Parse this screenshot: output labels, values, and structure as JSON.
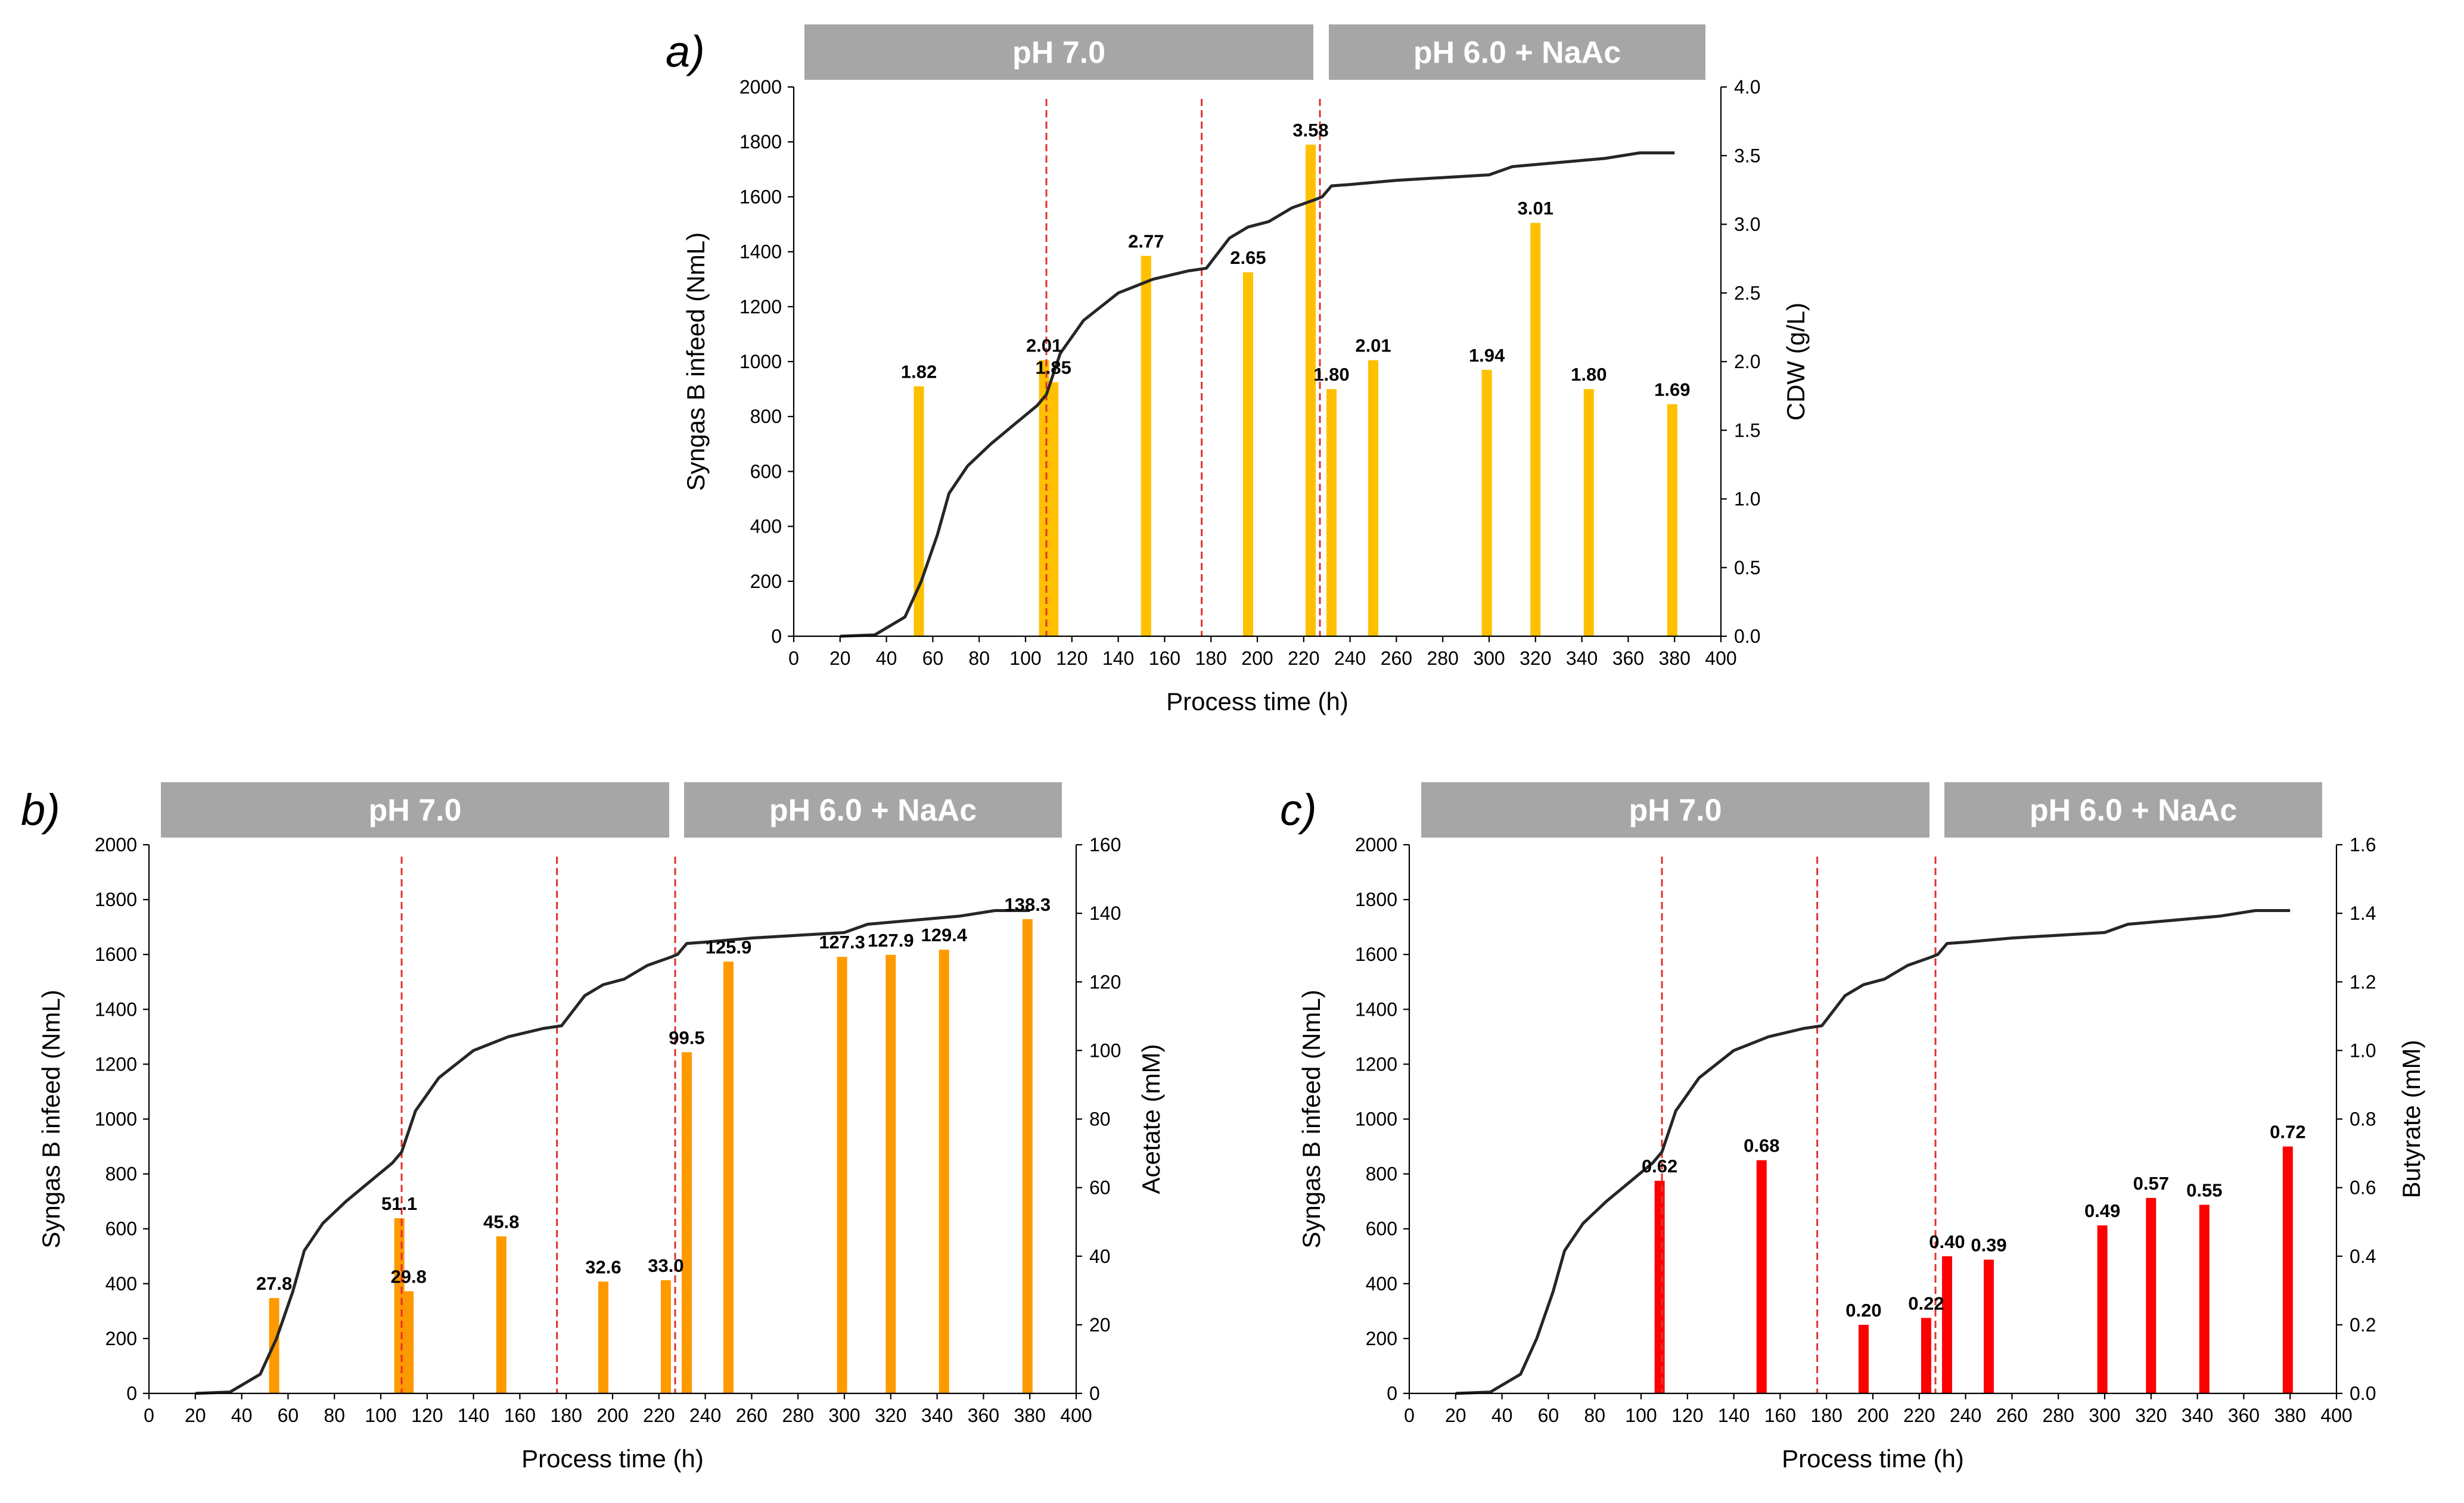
{
  "chart_data": [
    {
      "panel": "a)",
      "type": "bar",
      "phases": [
        {
          "label": "pH 7.0"
        },
        {
          "label": "pH 6.0 + NaAc"
        }
      ],
      "xlabel": "Process time (h)",
      "ylabel_left": "Syngas B infeed (NmL)",
      "ylabel_right": "CDW (g/L)",
      "xlim": [
        0,
        400
      ],
      "x_ticks": [
        "0",
        "20",
        "40",
        "60",
        "80",
        "100",
        "120",
        "140",
        "160",
        "180",
        "200",
        "220",
        "240",
        "260",
        "280",
        "300",
        "320",
        "340",
        "360",
        "380",
        "400"
      ],
      "ylim_left": [
        0,
        2000
      ],
      "y_left_ticks": [
        "0",
        "200",
        "400",
        "600",
        "800",
        "1000",
        "1200",
        "1400",
        "1600",
        "1800",
        "2000"
      ],
      "ylim_right": [
        0,
        4
      ],
      "y_right_ticks": [
        "0.0",
        "0.5",
        "1.0",
        "1.5",
        "2.0",
        "2.5",
        "3.0",
        "3.5",
        "4.0"
      ],
      "vlines": [
        109,
        176,
        227
      ],
      "bar_color": "#FFC000",
      "bars": [
        {
          "x": 54,
          "value": 1.82,
          "label": "1.82"
        },
        {
          "x": 108,
          "value": 2.01,
          "label": "2.01"
        },
        {
          "x": 112,
          "value": 1.85,
          "label": "1.85"
        },
        {
          "x": 152,
          "value": 2.77,
          "label": "2.77"
        },
        {
          "x": 196,
          "value": 2.65,
          "label": "2.65"
        },
        {
          "x": 223,
          "value": 3.58,
          "label": "3.58"
        },
        {
          "x": 232,
          "value": 1.8,
          "label": "1.80"
        },
        {
          "x": 250,
          "value": 2.01,
          "label": "2.01"
        },
        {
          "x": 299,
          "value": 1.94,
          "label": "1.94"
        },
        {
          "x": 320,
          "value": 3.01,
          "label": "3.01"
        },
        {
          "x": 343,
          "value": 1.8,
          "label": "1.80"
        },
        {
          "x": 379,
          "value": 1.69,
          "label": "1.69"
        }
      ],
      "line": {
        "name": "Syngas B infeed",
        "x": [
          20,
          35,
          48,
          55,
          62,
          67,
          75,
          85,
          95,
          105,
          109,
          115,
          125,
          140,
          155,
          170,
          178,
          188,
          196,
          205,
          215,
          225,
          228,
          232,
          240,
          260,
          280,
          300,
          310,
          330,
          350,
          365,
          380
        ],
        "y": [
          0,
          5,
          70,
          200,
          370,
          520,
          620,
          700,
          770,
          840,
          880,
          1030,
          1150,
          1250,
          1300,
          1330,
          1340,
          1450,
          1490,
          1510,
          1560,
          1590,
          1600,
          1640,
          1645,
          1660,
          1670,
          1680,
          1710,
          1725,
          1740,
          1760,
          1760
        ]
      }
    },
    {
      "panel": "b)",
      "type": "bar",
      "phases": [
        {
          "label": "pH 7.0"
        },
        {
          "label": "pH 6.0 + NaAc"
        }
      ],
      "xlabel": "Process time (h)",
      "ylabel_left": "Syngas B infeed (NmL)",
      "ylabel_right": "Acetate (mM)",
      "xlim": [
        0,
        400
      ],
      "x_ticks": [
        "0",
        "20",
        "40",
        "60",
        "80",
        "100",
        "120",
        "140",
        "160",
        "180",
        "200",
        "220",
        "240",
        "260",
        "280",
        "300",
        "320",
        "340",
        "360",
        "380",
        "400"
      ],
      "ylim_left": [
        0,
        2000
      ],
      "y_left_ticks": [
        "0",
        "200",
        "400",
        "600",
        "800",
        "1000",
        "1200",
        "1400",
        "1600",
        "1800",
        "2000"
      ],
      "ylim_right": [
        0,
        160
      ],
      "y_right_ticks": [
        "0",
        "20",
        "40",
        "60",
        "80",
        "100",
        "120",
        "140",
        "160"
      ],
      "vlines": [
        109,
        176,
        227
      ],
      "bar_color": "#FF9900",
      "bars": [
        {
          "x": 54,
          "value": 27.8,
          "label": "27.8"
        },
        {
          "x": 108,
          "value": 51.1,
          "label": "51.1"
        },
        {
          "x": 112,
          "value": 29.8,
          "label": "29.8"
        },
        {
          "x": 152,
          "value": 45.8,
          "label": "45.8"
        },
        {
          "x": 196,
          "value": 32.6,
          "label": "32.6"
        },
        {
          "x": 223,
          "value": 33.0,
          "label": "33.0"
        },
        {
          "x": 232,
          "value": 99.5,
          "label": "99.5"
        },
        {
          "x": 250,
          "value": 125.9,
          "label": "125.9"
        },
        {
          "x": 299,
          "value": 127.3,
          "label": "127.3"
        },
        {
          "x": 320,
          "value": 127.9,
          "label": "127.9"
        },
        {
          "x": 343,
          "value": 129.4,
          "label": "129.4"
        },
        {
          "x": 379,
          "value": 138.3,
          "label": "138.3"
        }
      ],
      "line": {
        "name": "Syngas B infeed",
        "x": [
          20,
          35,
          48,
          55,
          62,
          67,
          75,
          85,
          95,
          105,
          109,
          115,
          125,
          140,
          155,
          170,
          178,
          188,
          196,
          205,
          215,
          225,
          228,
          232,
          240,
          260,
          280,
          300,
          310,
          330,
          350,
          365,
          380
        ],
        "y": [
          0,
          5,
          70,
          200,
          370,
          520,
          620,
          700,
          770,
          840,
          880,
          1030,
          1150,
          1250,
          1300,
          1330,
          1340,
          1450,
          1490,
          1510,
          1560,
          1590,
          1600,
          1640,
          1645,
          1660,
          1670,
          1680,
          1710,
          1725,
          1740,
          1760,
          1760
        ]
      }
    },
    {
      "panel": "c)",
      "type": "bar",
      "phases": [
        {
          "label": "pH 7.0"
        },
        {
          "label": "pH 6.0 + NaAc"
        }
      ],
      "xlabel": "Process time (h)",
      "ylabel_left": "Syngas B infeed (NmL)",
      "ylabel_right": "Butyrate (mM)",
      "xlim": [
        0,
        400
      ],
      "x_ticks": [
        "0",
        "20",
        "40",
        "60",
        "80",
        "100",
        "120",
        "140",
        "160",
        "180",
        "200",
        "220",
        "240",
        "260",
        "280",
        "300",
        "320",
        "340",
        "360",
        "380",
        "400"
      ],
      "ylim_left": [
        0,
        2000
      ],
      "y_left_ticks": [
        "0",
        "200",
        "400",
        "600",
        "800",
        "1000",
        "1200",
        "1400",
        "1600",
        "1800",
        "2000"
      ],
      "ylim_right": [
        0,
        1.6
      ],
      "y_right_ticks": [
        "0.0",
        "0.2",
        "0.4",
        "0.6",
        "0.8",
        "1.0",
        "1.2",
        "1.4",
        "1.6"
      ],
      "vlines": [
        109,
        176,
        227
      ],
      "bar_color": "#FF0000",
      "bars": [
        {
          "x": 108,
          "value": 0.62,
          "label": "0.62"
        },
        {
          "x": 152,
          "value": 0.68,
          "label": "0.68"
        },
        {
          "x": 196,
          "value": 0.2,
          "label": "0.20"
        },
        {
          "x": 223,
          "value": 0.22,
          "label": "0.22"
        },
        {
          "x": 232,
          "value": 0.4,
          "label": "0.40"
        },
        {
          "x": 250,
          "value": 0.39,
          "label": "0.39"
        },
        {
          "x": 299,
          "value": 0.49,
          "label": "0.49"
        },
        {
          "x": 320,
          "value": 0.57,
          "label": "0.57"
        },
        {
          "x": 343,
          "value": 0.55,
          "label": "0.55"
        },
        {
          "x": 379,
          "value": 0.72,
          "label": "0.72"
        }
      ],
      "line": {
        "name": "Syngas B infeed",
        "x": [
          20,
          35,
          48,
          55,
          62,
          67,
          75,
          85,
          95,
          105,
          109,
          115,
          125,
          140,
          155,
          170,
          178,
          188,
          196,
          205,
          215,
          225,
          228,
          232,
          240,
          260,
          280,
          300,
          310,
          330,
          350,
          365,
          380
        ],
        "y": [
          0,
          5,
          70,
          200,
          370,
          520,
          620,
          700,
          770,
          840,
          880,
          1030,
          1150,
          1250,
          1300,
          1330,
          1340,
          1450,
          1490,
          1510,
          1560,
          1590,
          1600,
          1640,
          1645,
          1660,
          1670,
          1680,
          1710,
          1725,
          1740,
          1760,
          1760
        ]
      }
    }
  ]
}
